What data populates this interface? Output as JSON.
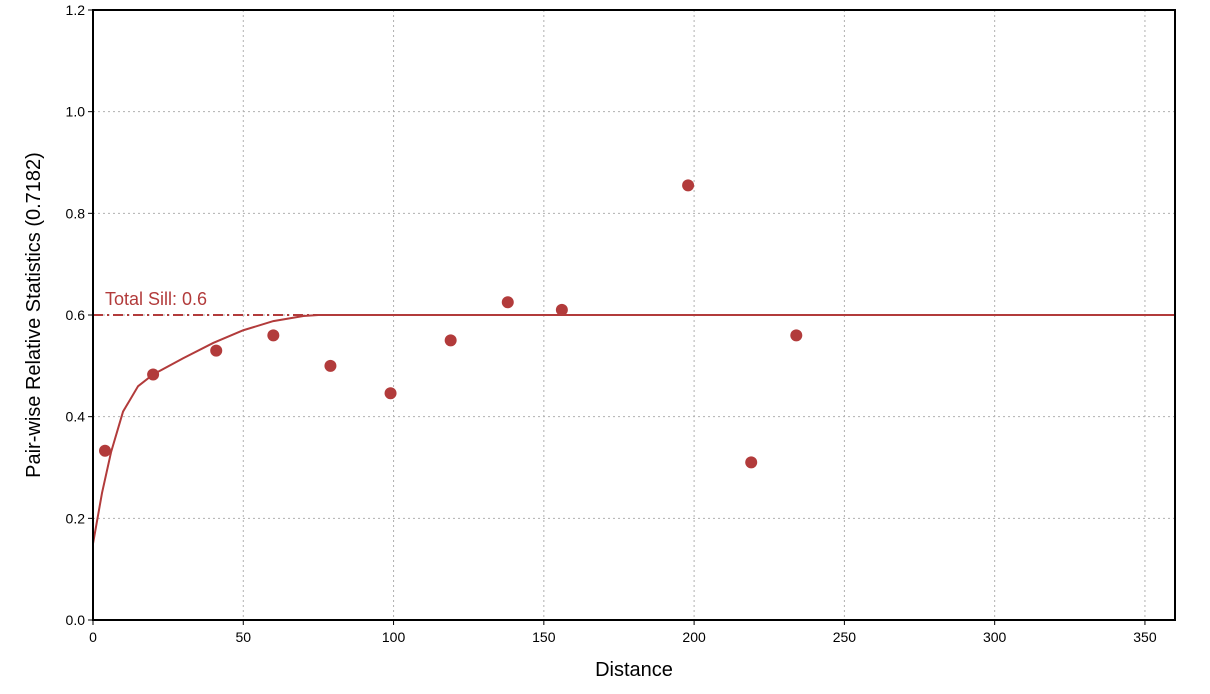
{
  "chart_data": {
    "type": "scatter",
    "x_label": "Distance",
    "y_label": "Pair-wise Relative Statistics (0.7182)",
    "annotation": "Total Sill: 0.6",
    "sill": 0.6,
    "color": "#b23b3b",
    "x": [
      4,
      20,
      41,
      60,
      79,
      99,
      119,
      138,
      156,
      198,
      219,
      234
    ],
    "values": [
      0.333,
      0.483,
      0.53,
      0.56,
      0.5,
      0.446,
      0.55,
      0.625,
      0.61,
      0.855,
      0.31,
      0.56
    ],
    "model_x": [
      0,
      3,
      6,
      10,
      15,
      20,
      30,
      40,
      50,
      60,
      70,
      75,
      360
    ],
    "model_values": [
      0.15,
      0.25,
      0.33,
      0.41,
      0.46,
      0.483,
      0.515,
      0.545,
      0.57,
      0.588,
      0.598,
      0.6,
      0.6
    ],
    "xlim": [
      0,
      360
    ],
    "xticks": [
      0,
      50,
      100,
      150,
      200,
      250,
      300,
      350
    ],
    "ylim": [
      0,
      1.2
    ],
    "yticks": [
      {
        "value": 0,
        "label": "0.0"
      },
      {
        "value": 0.2,
        "label": "0.2"
      },
      {
        "value": 0.4,
        "label": "0.4"
      },
      {
        "value": 0.6,
        "label": "0.6"
      },
      {
        "value": 0.8,
        "label": "0.8"
      },
      {
        "value": 1.0,
        "label": "1.0"
      },
      {
        "value": 1.2,
        "label": "1.2"
      }
    ],
    "grid": true
  }
}
